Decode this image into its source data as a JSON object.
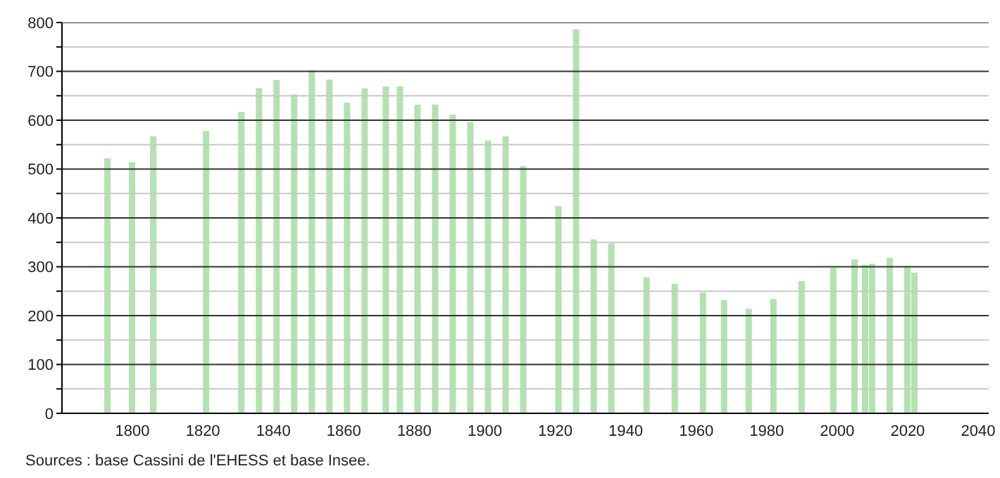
{
  "chart_data": {
    "type": "bar",
    "x": [
      1793,
      1800,
      1806,
      1821,
      1831,
      1836,
      1841,
      1846,
      1851,
      1856,
      1861,
      1866,
      1872,
      1876,
      1881,
      1886,
      1891,
      1896,
      1901,
      1906,
      1911,
      1921,
      1926,
      1931,
      1936,
      1946,
      1954,
      1962,
      1968,
      1975,
      1982,
      1990,
      1999,
      2005,
      2008,
      2010,
      2015,
      2020,
      2022
    ],
    "values": [
      522,
      514,
      567,
      578,
      617,
      666,
      682,
      653,
      702,
      683,
      636,
      665,
      669,
      669,
      632,
      632,
      611,
      596,
      558,
      567,
      506,
      424,
      786,
      356,
      348,
      278,
      265,
      247,
      232,
      214,
      234,
      271,
      298,
      315,
      304,
      306,
      318,
      301,
      288
    ],
    "color": "#b3e2b0",
    "xlim": [
      1780,
      2043
    ],
    "xticks": [
      1800,
      1820,
      1840,
      1860,
      1880,
      1900,
      1920,
      1940,
      1960,
      1980,
      2000,
      2020,
      2040
    ],
    "ylim": [
      0,
      800
    ],
    "yticks": [
      0,
      {
        "value": 50,
        "label": null
      },
      100,
      {
        "value": 150,
        "label": null
      },
      200,
      {
        "value": 250,
        "label": null
      },
      300,
      {
        "value": 350,
        "label": null
      },
      400,
      {
        "value": 450,
        "label": null
      },
      500,
      {
        "value": 550,
        "label": null
      },
      600,
      {
        "value": 650,
        "label": null
      },
      700,
      {
        "value": 750,
        "label": null
      },
      800
    ],
    "grid": "y",
    "annotations": [
      "Sources : base Cassini de l'EHESS et base Insee."
    ]
  }
}
